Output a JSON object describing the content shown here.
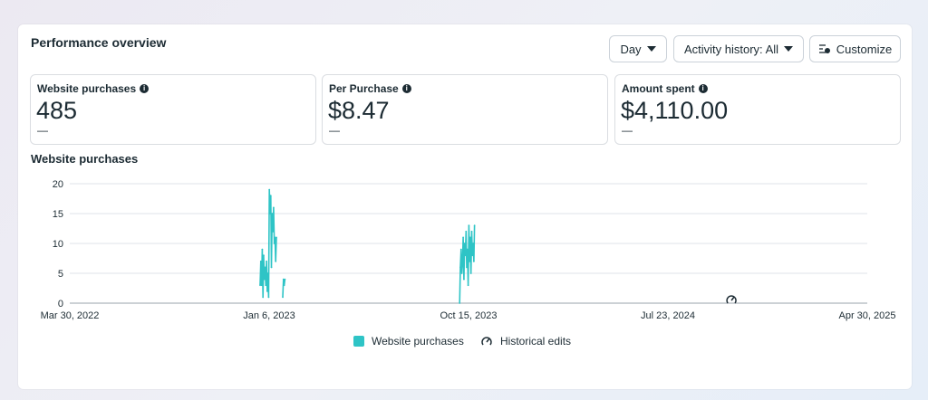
{
  "header": {
    "title": "Performance overview",
    "day_label": "Day",
    "activity_label": "Activity history: All",
    "customize_label": "Customize"
  },
  "metrics": [
    {
      "label": "Website purchases",
      "value": "485",
      "delta": "—"
    },
    {
      "label": "Per Purchase",
      "value": "$8.47",
      "delta": "—"
    },
    {
      "label": "Amount spent",
      "value": "$4,110.00",
      "delta": "—"
    }
  ],
  "colors": {
    "series": "#2ec4c6",
    "text": "#1c2b33",
    "grid": "#dfe3e8"
  },
  "chart_data": {
    "type": "line",
    "title": "Website purchases",
    "xlabel": "",
    "ylabel": "",
    "ylim": [
      0,
      20
    ],
    "y_ticks": [
      "0",
      "5",
      "10",
      "15",
      "20"
    ],
    "x_ticks": [
      "Mar 30, 2022",
      "Jan 6, 2023",
      "Oct 15, 2023",
      "Jul 23, 2024",
      "Apr 30, 2025"
    ],
    "x_range": [
      "2022-03-30",
      "2025-04-30"
    ],
    "grid": true,
    "legend_position": "bottom",
    "series": [
      {
        "name": "Website purchases",
        "x": [
          "2022-12-24",
          "2022-12-25",
          "2022-12-26",
          "2022-12-27",
          "2022-12-28",
          "2022-12-29",
          "2022-12-30",
          "2022-12-31",
          "2023-01-01",
          "2023-01-02",
          "2023-01-03",
          "2023-01-04",
          "2023-01-05",
          "2023-01-06",
          "2023-01-07",
          "2023-01-08",
          "2023-01-09",
          "2023-01-10",
          "2023-01-11",
          "2023-01-12",
          "2023-01-13",
          "2023-01-14",
          "2023-01-15",
          "2023-01-16",
          "2023-01-25",
          "2023-01-26",
          "2023-01-27",
          "2023-01-28",
          "2023-10-02",
          "2023-10-03",
          "2023-10-04",
          "2023-10-05",
          "2023-10-06",
          "2023-10-07",
          "2023-10-08",
          "2023-10-09",
          "2023-10-10",
          "2023-10-11",
          "2023-10-12",
          "2023-10-13",
          "2023-10-14",
          "2023-10-15",
          "2023-10-16",
          "2023-10-17",
          "2023-10-18",
          "2023-10-19",
          "2023-10-20",
          "2023-10-21",
          "2023-10-22",
          "2023-10-23"
        ],
        "y": [
          3,
          7,
          3,
          9,
          1,
          8,
          4,
          6,
          3,
          7,
          2,
          5,
          1,
          19,
          15,
          18,
          6,
          15,
          12,
          16,
          10,
          11,
          7,
          11,
          1,
          4,
          3,
          4,
          0,
          6,
          9,
          5,
          7,
          11,
          4,
          10,
          8,
          12,
          6,
          9,
          3,
          13,
          7,
          11,
          5,
          12,
          8,
          10,
          7,
          13
        ]
      }
    ],
    "annotations": [
      {
        "type": "historical-edit",
        "date": "2024-10-20"
      }
    ],
    "legend": [
      {
        "label": "Website purchases",
        "icon": "swatch"
      },
      {
        "label": "Historical edits",
        "icon": "gauge-icon"
      }
    ]
  }
}
